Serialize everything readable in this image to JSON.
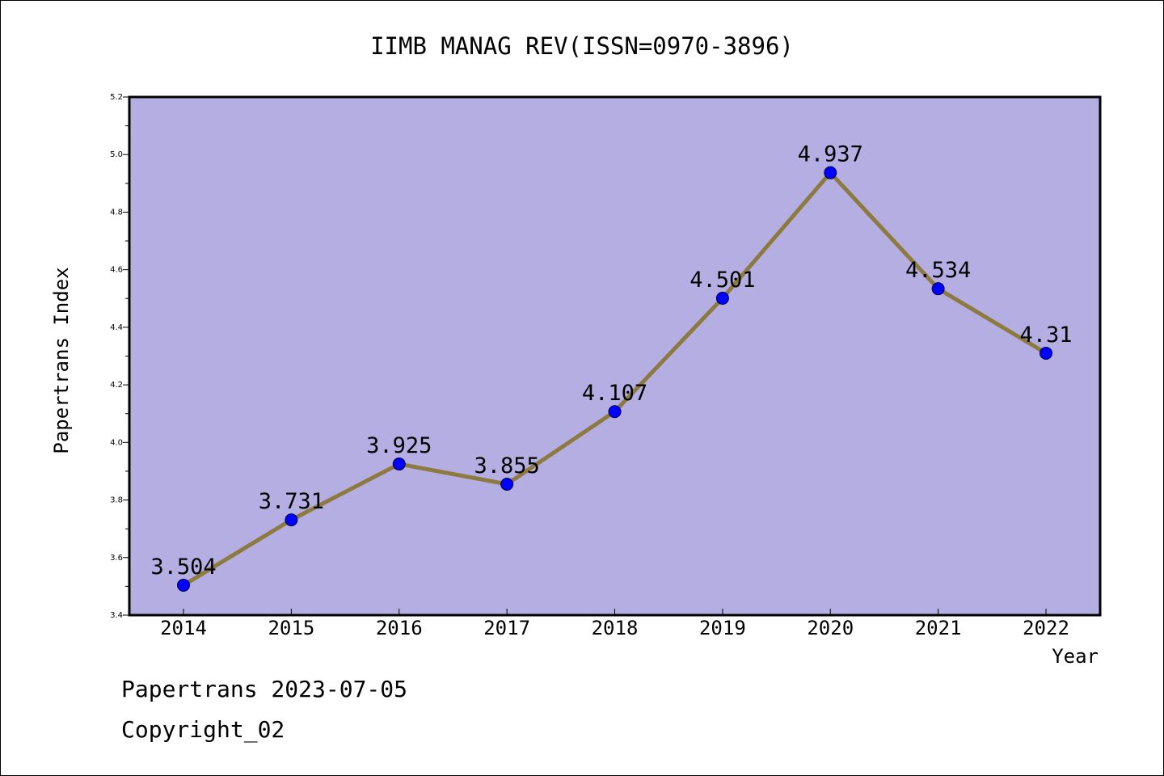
{
  "chart_data": {
    "type": "line",
    "title": "IIMB MANAG REV(ISSN=0970-3896)",
    "xlabel": "Year",
    "ylabel": "Papertrans Index",
    "categories": [
      "2014",
      "2015",
      "2016",
      "2017",
      "2018",
      "2019",
      "2020",
      "2021",
      "2022"
    ],
    "series": [
      {
        "values": [
          3.504,
          3.731,
          3.925,
          3.855,
          4.107,
          4.501,
          4.937,
          4.534,
          4.31
        ],
        "labels": [
          "3.504",
          "3.731",
          "3.925",
          "3.855",
          "4.107",
          "4.501",
          "4.937",
          "4.534",
          "4.31"
        ]
      }
    ],
    "ylim": [
      3.4,
      5.2
    ],
    "yticks": [
      "3.4",
      "3.6",
      "3.8",
      "4.0",
      "4.2",
      "4.4",
      "4.6",
      "4.8",
      "5.0",
      "5.2"
    ],
    "grid": false,
    "colors": {
      "plot_background": "#b5aee2",
      "line": "#8c7a3e",
      "marker": "#0000ff"
    }
  },
  "footer": {
    "date_line": "Papertrans 2023-07-05",
    "copyright": "Copyright_02"
  }
}
